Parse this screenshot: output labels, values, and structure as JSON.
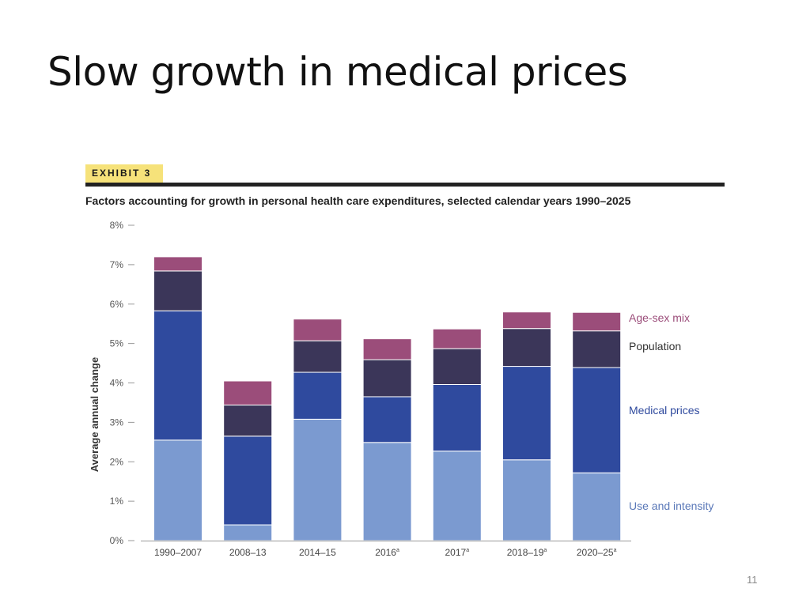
{
  "slide": {
    "title": "Slow growth in medical prices",
    "page_number": "11"
  },
  "exhibit": {
    "label": "EXHIBIT 3"
  },
  "chart_data": {
    "type": "bar",
    "stacked": true,
    "title": "Factors accounting for growth in personal health care expenditures, selected calendar years 1990–2025",
    "xlabel": "",
    "ylabel": "Average annual change",
    "ylim": [
      0,
      8
    ],
    "yticks": [
      "0%",
      "1%",
      "2%",
      "3%",
      "4%",
      "5%",
      "6%",
      "7%",
      "8%"
    ],
    "categories": [
      "1990–2007",
      "2008–13",
      "2014–15",
      "2016",
      "2017",
      "2018–19",
      "2020–25"
    ],
    "category_marks": [
      "",
      "",
      "",
      "a",
      "a",
      "a",
      "a"
    ],
    "series": [
      {
        "name": "Use and intensity",
        "color": "#7b9ad0",
        "values": [
          2.55,
          0.4,
          3.08,
          2.49,
          2.27,
          2.05,
          1.72
        ]
      },
      {
        "name": "Medical prices",
        "color": "#2f4a9e",
        "values": [
          3.28,
          2.25,
          1.19,
          1.16,
          1.69,
          2.37,
          2.67
        ]
      },
      {
        "name": "Population",
        "color": "#3b3659",
        "values": [
          1.01,
          0.79,
          0.8,
          0.94,
          0.91,
          0.96,
          0.93
        ]
      },
      {
        "name": "Age-sex mix",
        "color": "#9b4d7a",
        "values": [
          0.36,
          0.61,
          0.55,
          0.53,
          0.5,
          0.42,
          0.47
        ]
      }
    ],
    "grid": false,
    "legend": "right, aligned with stacked segments"
  }
}
